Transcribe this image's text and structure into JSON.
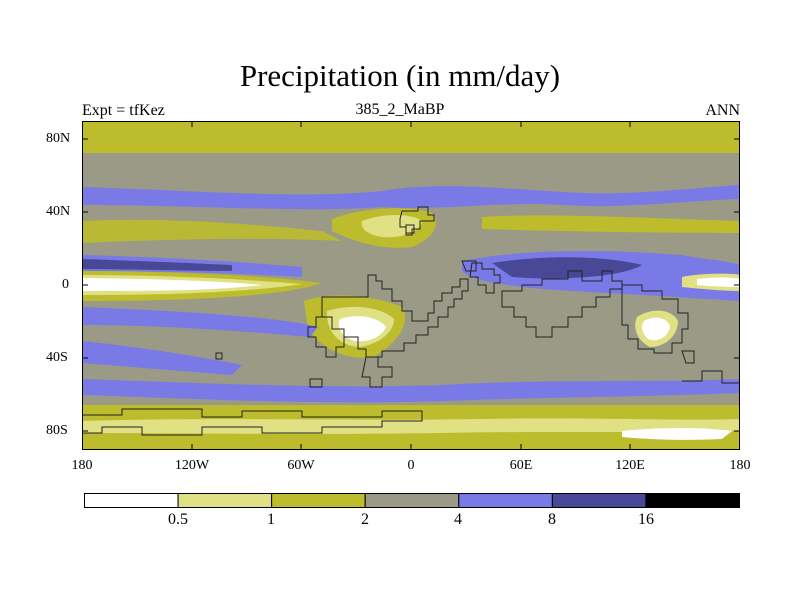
{
  "title": "Precipitation (in mm/day)",
  "experiment_label": "Expt = tfKez",
  "run_name": "385_2_MaBP",
  "season": "ANN",
  "lat_ticks": [
    "80N",
    "40N",
    "0",
    "40S",
    "80S"
  ],
  "lon_ticks": [
    "180",
    "120W",
    "60W",
    "0",
    "60E",
    "120E",
    "180"
  ],
  "colorbar": {
    "levels": [
      "0.5",
      "1",
      "2",
      "4",
      "8",
      "16"
    ],
    "colors": [
      "#ffffff",
      "#e0e084",
      "#bcbc2c",
      "#9a9a86",
      "#7a7ae6",
      "#484896",
      "#000000"
    ]
  }
}
